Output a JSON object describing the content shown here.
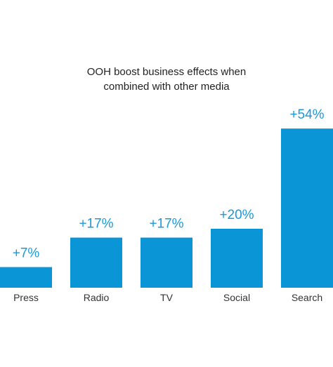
{
  "chart_data": {
    "type": "bar",
    "title_lines": [
      "OOH boost business effects when",
      "combined with other media"
    ],
    "categories": [
      "Press",
      "Radio",
      "TV",
      "Social",
      "Search"
    ],
    "values": [
      7,
      17,
      17,
      20,
      54
    ],
    "value_labels": [
      "+7%",
      "+17%",
      "+17%",
      "+20%",
      "+54%"
    ],
    "xlabel": "",
    "ylabel": "",
    "ylim": [
      0,
      60
    ],
    "grid": false,
    "legend": "none",
    "bar_color": "#0a96d6",
    "label_color": "#1a9ad9"
  }
}
